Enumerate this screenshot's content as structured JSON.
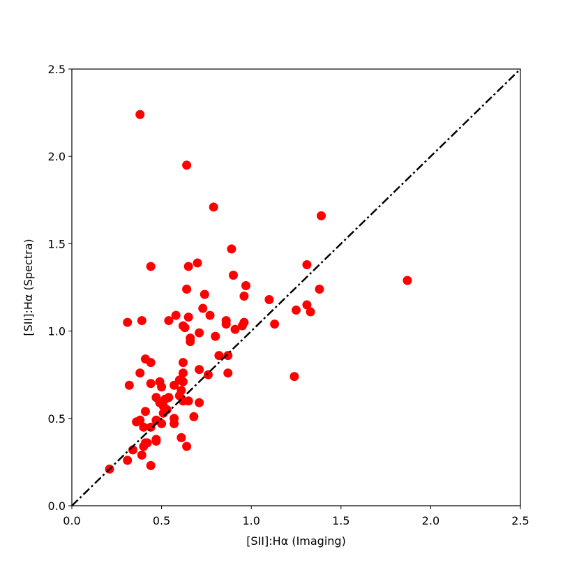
{
  "chart_data": {
    "type": "scatter",
    "xlabel": "[SII]:Hα (Imaging)",
    "ylabel": "[SII]:Hα (Spectra)",
    "x": [
      0.38,
      0.64,
      0.79,
      1.39,
      0.89,
      0.44,
      0.65,
      0.7,
      1.31,
      0.9,
      1.87,
      0.97,
      0.64,
      1.38,
      0.74,
      0.96,
      1.1,
      0.73,
      1.25,
      1.31,
      1.33,
      0.58,
      0.77,
      0.65,
      0.31,
      0.39,
      0.54,
      0.86,
      0.96,
      0.62,
      0.86,
      0.95,
      0.63,
      0.91,
      1.13,
      0.71,
      0.66,
      0.66,
      0.8,
      0.82,
      0.87,
      0.41,
      0.44,
      0.62,
      0.71,
      0.87,
      0.76,
      0.38,
      1.24,
      0.62,
      0.62,
      0.6,
      0.49,
      0.44,
      0.32,
      0.5,
      0.57,
      0.61,
      0.6,
      0.47,
      0.54,
      0.52,
      0.62,
      0.65,
      0.71,
      0.49,
      0.51,
      0.53,
      0.41,
      0.51,
      0.68,
      0.57,
      0.47,
      0.36,
      0.38,
      0.57,
      0.5,
      0.4,
      0.44,
      0.61,
      0.47,
      0.47,
      0.41,
      0.42,
      0.4,
      0.64,
      0.34,
      0.39,
      0.31,
      0.44,
      0.21
    ],
    "values": [
      2.24,
      1.95,
      1.71,
      1.66,
      1.47,
      1.37,
      1.37,
      1.39,
      1.38,
      1.32,
      1.29,
      1.26,
      1.24,
      1.24,
      1.21,
      1.2,
      1.18,
      1.13,
      1.12,
      1.15,
      1.11,
      1.09,
      1.09,
      1.08,
      1.05,
      1.06,
      1.06,
      1.06,
      1.05,
      1.03,
      1.04,
      1.03,
      1.02,
      1.01,
      1.04,
      0.99,
      0.96,
      0.94,
      0.97,
      0.86,
      0.86,
      0.84,
      0.82,
      0.82,
      0.78,
      0.76,
      0.75,
      0.76,
      0.74,
      0.76,
      0.71,
      0.72,
      0.71,
      0.7,
      0.69,
      0.68,
      0.69,
      0.66,
      0.63,
      0.62,
      0.62,
      0.61,
      0.6,
      0.6,
      0.59,
      0.59,
      0.57,
      0.55,
      0.54,
      0.53,
      0.51,
      0.5,
      0.49,
      0.48,
      0.49,
      0.47,
      0.47,
      0.45,
      0.45,
      0.39,
      0.38,
      0.37,
      0.36,
      0.36,
      0.34,
      0.34,
      0.32,
      0.29,
      0.26,
      0.23,
      0.21
    ],
    "color": "#ff0000",
    "xlim": [
      0,
      2.5
    ],
    "ylim": [
      0,
      2.5
    ],
    "xticks": [
      {
        "value": 0,
        "label": "0.0"
      },
      0.5,
      {
        "value": 1,
        "label": "1.0"
      },
      1.5,
      {
        "value": 2,
        "label": "2.0"
      },
      2.5
    ],
    "yticks": [
      {
        "value": 0,
        "label": "0.0"
      },
      0.5,
      {
        "value": 1,
        "label": "1.0"
      },
      1.5,
      {
        "value": 2,
        "label": "2.0"
      },
      2.5
    ],
    "identity_line": true
  }
}
